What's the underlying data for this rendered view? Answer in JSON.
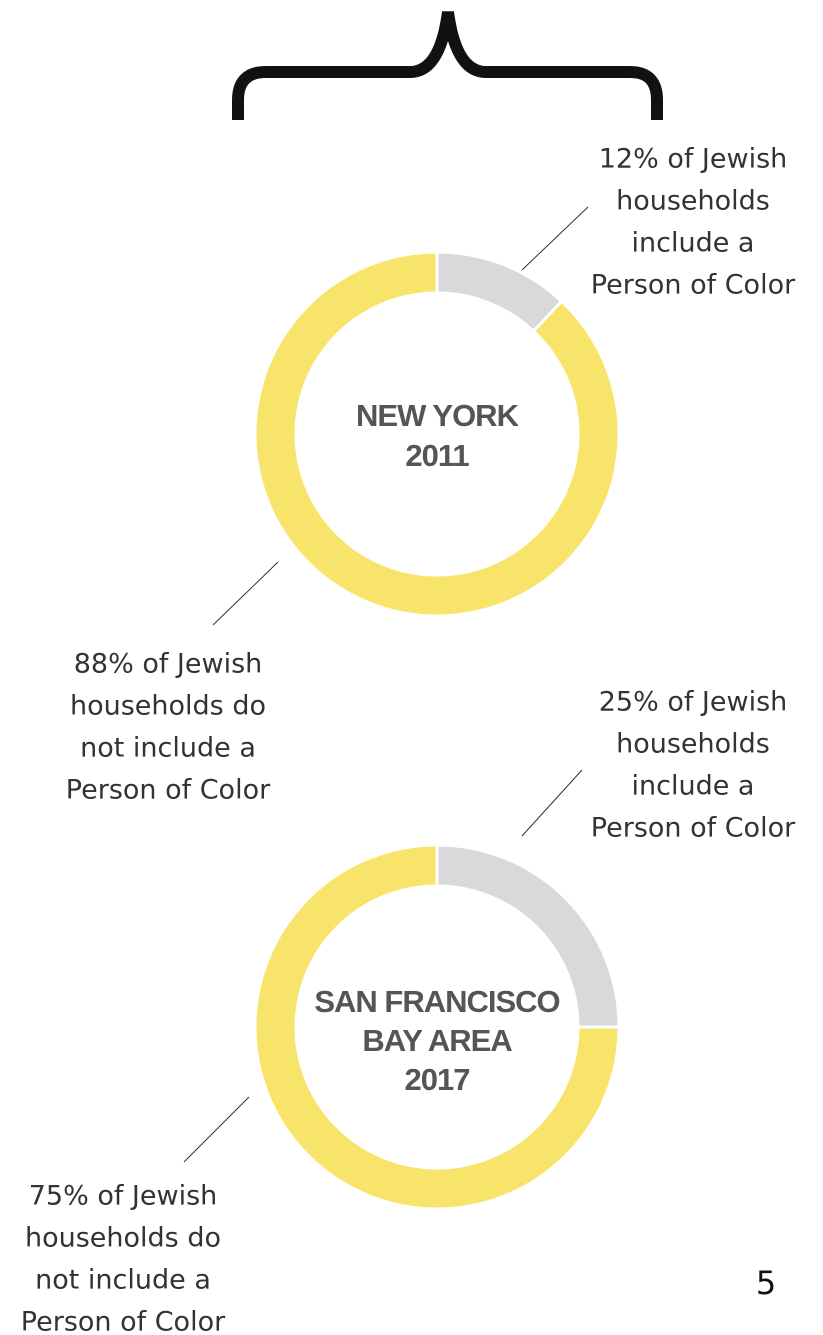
{
  "chart_data": [
    {
      "type": "donut",
      "title": [
        "NEW YORK",
        "2011"
      ],
      "values": [
        12,
        88
      ],
      "colors": [
        "#d9d9d9",
        "#f9e46b"
      ],
      "value_labels": [
        [
          "12% of Jewish",
          "households",
          "include a",
          "Person of Color"
        ],
        [
          "88% of Jewish",
          "households do",
          "not include a",
          "Person of Color"
        ]
      ]
    },
    {
      "type": "donut",
      "title": [
        "SAN FRANCISCO",
        "BAY AREA",
        "2017"
      ],
      "values": [
        25,
        75
      ],
      "colors": [
        "#d9d9d9",
        "#f9e46b"
      ],
      "value_labels": [
        [
          "25% of Jewish",
          "households",
          "include a",
          "Person of Color"
        ],
        [
          "75% of Jewish",
          "households do",
          "not include a",
          "Person of Color"
        ]
      ]
    }
  ],
  "page_number": "5"
}
